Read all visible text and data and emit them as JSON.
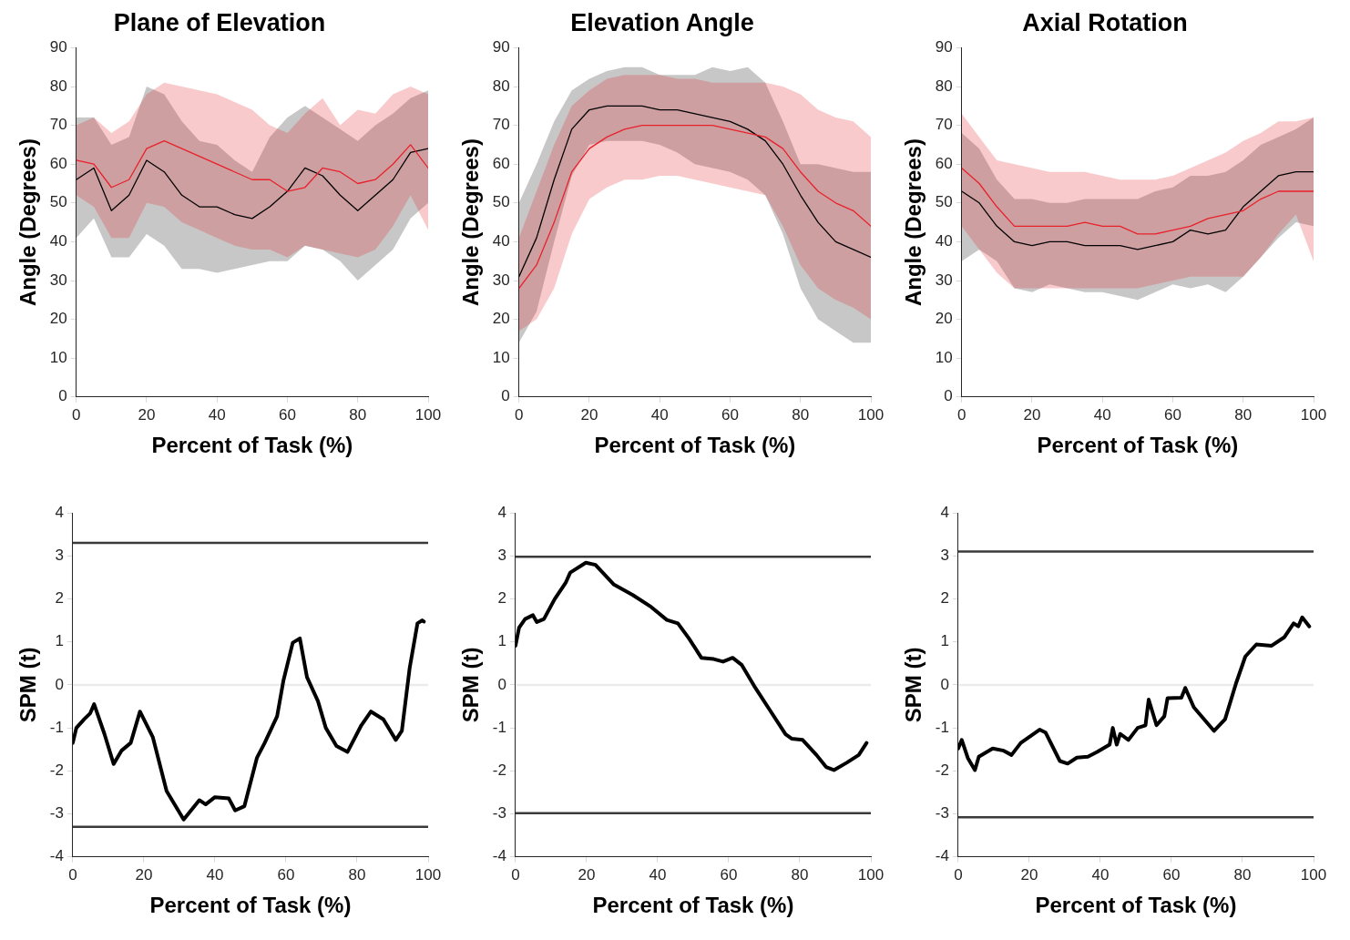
{
  "chart_data": [
    {
      "type": "line",
      "title": "Plane of Elevation",
      "xlabel": "Percent of Task (%)",
      "ylabel": "Angle (Degrees)",
      "xlim": [
        0,
        100
      ],
      "xticks": [
        0,
        20,
        40,
        60,
        80,
        100
      ],
      "ylim": [
        0,
        90
      ],
      "yticks": [
        0,
        10,
        20,
        30,
        40,
        50,
        60,
        70,
        80,
        90
      ],
      "x": [
        0,
        5,
        10,
        15,
        20,
        25,
        30,
        35,
        40,
        45,
        50,
        55,
        60,
        65,
        70,
        75,
        80,
        85,
        90,
        95,
        100
      ],
      "series": [
        {
          "color": "#000000",
          "values": [
            56,
            59,
            48,
            52,
            61,
            58,
            52,
            49,
            49,
            47,
            46,
            49,
            53,
            59,
            57,
            52,
            48,
            52,
            56,
            63,
            64
          ],
          "lower": [
            41,
            46,
            36,
            36,
            42,
            39,
            33,
            33,
            32,
            33,
            34,
            35,
            35,
            39,
            38,
            35,
            30,
            34,
            38,
            46,
            50
          ],
          "upper": [
            72,
            72,
            65,
            67,
            80,
            78,
            71,
            66,
            65,
            61,
            58,
            67,
            72,
            75,
            72,
            69,
            66,
            70,
            73,
            77,
            79
          ]
        },
        {
          "color": "#e8212a",
          "values": [
            61,
            60,
            54,
            56,
            64,
            66,
            64,
            62,
            60,
            58,
            56,
            56,
            53,
            54,
            59,
            58,
            55,
            56,
            60,
            65,
            59
          ],
          "lower": [
            52,
            49,
            41,
            41,
            50,
            49,
            45,
            43,
            41,
            39,
            38,
            38,
            36,
            39,
            38,
            37,
            36,
            38,
            44,
            52,
            43
          ],
          "upper": [
            70,
            72,
            68,
            71,
            78,
            81,
            80,
            79,
            78,
            76,
            74,
            70,
            68,
            73,
            77,
            70,
            74,
            73,
            78,
            80,
            78
          ]
        }
      ]
    },
    {
      "type": "line",
      "title": "Elevation Angle",
      "xlabel": "Percent of Task (%)",
      "ylabel": "Angle (Degrees)",
      "xlim": [
        0,
        100
      ],
      "xticks": [
        0,
        20,
        40,
        60,
        80,
        100
      ],
      "ylim": [
        0,
        90
      ],
      "yticks": [
        0,
        10,
        20,
        30,
        40,
        50,
        60,
        70,
        80,
        90
      ],
      "x": [
        0,
        5,
        10,
        15,
        20,
        25,
        30,
        35,
        40,
        45,
        50,
        55,
        60,
        65,
        70,
        75,
        80,
        85,
        90,
        95,
        100
      ],
      "series": [
        {
          "color": "#000000",
          "values": [
            31,
            41,
            56,
            69,
            74,
            75,
            75,
            75,
            74,
            74,
            73,
            72,
            71,
            69,
            66,
            60,
            52,
            45,
            40,
            38,
            36
          ],
          "lower": [
            14,
            22,
            40,
            57,
            65,
            66,
            66,
            66,
            65,
            63,
            60,
            59,
            58,
            56,
            52,
            42,
            28,
            20,
            17,
            14,
            14
          ],
          "upper": [
            50,
            60,
            71,
            79,
            82,
            84,
            85,
            85,
            83,
            83,
            83,
            85,
            84,
            85,
            81,
            71,
            60,
            60,
            59,
            58,
            58
          ]
        },
        {
          "color": "#e8212a",
          "values": [
            28,
            34,
            45,
            58,
            64,
            67,
            69,
            70,
            70,
            70,
            70,
            70,
            69,
            68,
            67,
            64,
            58,
            53,
            50,
            48,
            44
          ],
          "lower": [
            17,
            20,
            28,
            42,
            51,
            54,
            56,
            56,
            57,
            57,
            56,
            55,
            54,
            53,
            52,
            44,
            34,
            28,
            25,
            23,
            20
          ],
          "upper": [
            41,
            53,
            65,
            75,
            79,
            82,
            83,
            83,
            83,
            82,
            82,
            81,
            81,
            81,
            81,
            80,
            78,
            74,
            72,
            71,
            67
          ]
        }
      ]
    },
    {
      "type": "line",
      "title": "Axial Rotation",
      "xlabel": "Percent of Task (%)",
      "ylabel": "Angle (Degrees)",
      "xlim": [
        0,
        100
      ],
      "xticks": [
        0,
        20,
        40,
        60,
        80,
        100
      ],
      "ylim": [
        0,
        90
      ],
      "yticks": [
        0,
        10,
        20,
        30,
        40,
        50,
        60,
        70,
        80,
        90
      ],
      "x": [
        0,
        5,
        10,
        15,
        20,
        25,
        30,
        35,
        40,
        45,
        50,
        55,
        60,
        65,
        70,
        75,
        80,
        85,
        90,
        95,
        100
      ],
      "series": [
        {
          "color": "#000000",
          "values": [
            53,
            50,
            44,
            40,
            39,
            40,
            40,
            39,
            39,
            39,
            38,
            39,
            40,
            43,
            42,
            43,
            49,
            53,
            57,
            58,
            58
          ],
          "lower": [
            35,
            38,
            35,
            28,
            27,
            29,
            28,
            27,
            27,
            26,
            25,
            27,
            29,
            28,
            29,
            27,
            31,
            36,
            41,
            45,
            44
          ],
          "upper": [
            68,
            64,
            56,
            51,
            51,
            50,
            50,
            51,
            51,
            51,
            51,
            53,
            54,
            57,
            57,
            58,
            61,
            65,
            67,
            69,
            72
          ]
        },
        {
          "color": "#e8212a",
          "values": [
            59,
            55,
            49,
            44,
            44,
            44,
            44,
            45,
            44,
            44,
            42,
            42,
            43,
            44,
            46,
            47,
            48,
            51,
            53,
            53,
            53
          ],
          "lower": [
            44,
            38,
            32,
            28,
            28,
            28,
            28,
            28,
            28,
            28,
            28,
            29,
            30,
            31,
            31,
            31,
            31,
            36,
            42,
            47,
            35
          ],
          "upper": [
            73,
            67,
            61,
            60,
            59,
            58,
            58,
            58,
            57,
            56,
            56,
            56,
            57,
            59,
            61,
            63,
            66,
            68,
            71,
            71,
            72
          ]
        }
      ]
    },
    {
      "type": "line",
      "xlabel": "Percent of Task (%)",
      "ylabel": "SPM (t)",
      "xlim": [
        0,
        100
      ],
      "xticks": [
        0,
        20,
        40,
        60,
        80,
        100
      ],
      "ylim": [
        -4,
        4
      ],
      "yticks": [
        -4,
        -3,
        -2,
        -1,
        0,
        1,
        2,
        3,
        4
      ],
      "ref_lines": [
        {
          "axis": "y",
          "value": 0,
          "color": "#ebebeb"
        },
        {
          "axis": "y",
          "value": 3.3,
          "color": "#3a3a3a"
        },
        {
          "axis": "y",
          "value": -3.3,
          "color": "#3a3a3a"
        }
      ],
      "series": [
        {
          "color": "#000000",
          "x": [
            0,
            1,
            3.2,
            4.9,
            6,
            8.9,
            11.5,
            13.7,
            16.3,
            18.9,
            22.5,
            26.4,
            31.2,
            35.6,
            37.4,
            40,
            43.9,
            45.7,
            48.3,
            51.8,
            54,
            57.5,
            59.3,
            61.9,
            63.9,
            65.9,
            69,
            71.2,
            74.2,
            77.3,
            81.2,
            83.9,
            87.4,
            90.9,
            92.6,
            94.8,
            97,
            98.3,
            98.8
          ],
          "values": [
            -1.35,
            -1.0,
            -0.8,
            -0.66,
            -0.45,
            -1.14,
            -1.84,
            -1.53,
            -1.35,
            -0.62,
            -1.21,
            -2.47,
            -3.13,
            -2.68,
            -2.78,
            -2.61,
            -2.64,
            -2.92,
            -2.82,
            -1.7,
            -1.35,
            -0.73,
            0.11,
            0.98,
            1.08,
            0.18,
            -0.38,
            -1.0,
            -1.42,
            -1.56,
            -0.94,
            -0.62,
            -0.8,
            -1.28,
            -1.07,
            0.39,
            1.43,
            1.5,
            1.47
          ]
        }
      ]
    },
    {
      "type": "line",
      "xlabel": "Percent of Task (%)",
      "ylabel": "SPM (t)",
      "xlim": [
        0,
        100
      ],
      "xticks": [
        0,
        20,
        40,
        60,
        80,
        100
      ],
      "ylim": [
        -4,
        4
      ],
      "yticks": [
        -4,
        -3,
        -2,
        -1,
        0,
        1,
        2,
        3,
        4
      ],
      "ref_lines": [
        {
          "axis": "y",
          "value": 0,
          "color": "#ebebeb"
        },
        {
          "axis": "y",
          "value": 2.98,
          "color": "#3a3a3a"
        },
        {
          "axis": "y",
          "value": -2.98,
          "color": "#3a3a3a"
        }
      ],
      "series": [
        {
          "color": "#000000",
          "x": [
            0,
            1,
            2.7,
            4.9,
            6,
            8,
            11,
            14.1,
            15.4,
            19.8,
            22.5,
            27.7,
            33,
            38.2,
            42.6,
            45.7,
            48.8,
            52.3,
            55.8,
            58.4,
            61.1,
            63.7,
            67.2,
            71.6,
            76,
            77.7,
            80.8,
            84.7,
            87.4,
            89.6,
            93.2,
            96.6,
            98.8
          ],
          "values": [
            0.91,
            1.33,
            1.53,
            1.62,
            1.46,
            1.53,
            1.99,
            2.37,
            2.61,
            2.84,
            2.79,
            2.33,
            2.09,
            1.81,
            1.51,
            1.43,
            1.08,
            0.63,
            0.6,
            0.54,
            0.63,
            0.46,
            -0.03,
            -0.59,
            -1.15,
            -1.25,
            -1.28,
            -1.63,
            -1.91,
            -1.98,
            -1.81,
            -1.63,
            -1.35
          ]
        }
      ]
    },
    {
      "type": "line",
      "xlabel": "Percent of Task (%)",
      "ylabel": "SPM (t)",
      "xlim": [
        0,
        100
      ],
      "xticks": [
        0,
        20,
        40,
        60,
        80,
        100
      ],
      "ylim": [
        -4,
        4
      ],
      "yticks": [
        -4,
        -3,
        -2,
        -1,
        0,
        1,
        2,
        3,
        4
      ],
      "ref_lines": [
        {
          "axis": "y",
          "value": 0,
          "color": "#ebebeb"
        },
        {
          "axis": "y",
          "value": 3.1,
          "color": "#3a3a3a"
        },
        {
          "axis": "y",
          "value": -3.08,
          "color": "#3a3a3a"
        }
      ],
      "series": [
        {
          "color": "#000000",
          "x": [
            0,
            1,
            2.7,
            4.7,
            5.8,
            9.7,
            12.8,
            15,
            17.6,
            22.9,
            24.6,
            28.6,
            30.8,
            33.4,
            36.5,
            39.1,
            42.6,
            43.5,
            44.6,
            45.6,
            47.9,
            50.5,
            52.7,
            53.6,
            55.8,
            58,
            58.9,
            62.8,
            63.9,
            66.3,
            72,
            75.1,
            78.2,
            80.8,
            83.9,
            88.2,
            91.8,
            94.4,
            95.7,
            96.8,
            98.8
          ],
          "values": [
            -1.48,
            -1.28,
            -1.7,
            -1.98,
            -1.67,
            -1.48,
            -1.53,
            -1.63,
            -1.35,
            -1.04,
            -1.11,
            -1.77,
            -1.83,
            -1.69,
            -1.67,
            -1.56,
            -1.39,
            -1.0,
            -1.39,
            -1.14,
            -1.28,
            -1.0,
            -0.94,
            -0.34,
            -0.94,
            -0.73,
            -0.31,
            -0.3,
            -0.07,
            -0.52,
            -1.07,
            -0.8,
            0.04,
            0.66,
            0.94,
            0.91,
            1.11,
            1.43,
            1.36,
            1.57,
            1.36
          ]
        }
      ]
    }
  ]
}
